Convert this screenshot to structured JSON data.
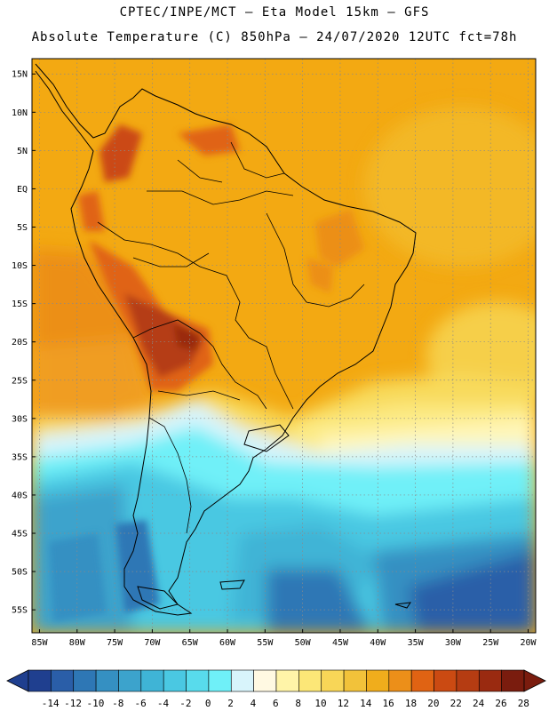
{
  "header": {
    "line1": "CPTEC/INPE/MCT –  Eta Model 15km – GFS",
    "line2": "Absolute Temperature (C) 850hPa – 24/07/2020 12UTC fct=78h"
  },
  "map": {
    "lon_range": [
      -86,
      -19
    ],
    "lat_range": [
      -58,
      17
    ],
    "lat_ticks": [
      "15N",
      "10N",
      "5N",
      "EQ",
      "5S",
      "10S",
      "15S",
      "20S",
      "25S",
      "30S",
      "35S",
      "40S",
      "45S",
      "50S",
      "55S"
    ],
    "lat_values": [
      15,
      10,
      5,
      0,
      -5,
      -10,
      -15,
      -20,
      -25,
      -30,
      -35,
      -40,
      -45,
      -50,
      -55
    ],
    "lon_ticks": [
      "85W",
      "80W",
      "75W",
      "70W",
      "65W",
      "60W",
      "55W",
      "50W",
      "45W",
      "40W",
      "35W",
      "30W",
      "25W",
      "20W"
    ],
    "lon_values": [
      -85,
      -80,
      -75,
      -70,
      -65,
      -60,
      -55,
      -50,
      -45,
      -40,
      -35,
      -30,
      -25,
      -20
    ],
    "variable": "Absolute Temperature",
    "units": "C",
    "level": "850hPa",
    "ocean_color": "#f5a60f",
    "land_outline_color": "#000000",
    "grid": true
  },
  "colorbar": {
    "labels": [
      "-14",
      "-12",
      "-10",
      "-8",
      "-6",
      "-4",
      "-2",
      "0",
      "2",
      "4",
      "6",
      "8",
      "10",
      "12",
      "14",
      "16",
      "18",
      "20",
      "22",
      "24",
      "26",
      "28"
    ],
    "colors": [
      "#1f3f8f",
      "#2a5ea8",
      "#2e77b5",
      "#3590c2",
      "#3ca3cc",
      "#3fb4d6",
      "#4ac8e2",
      "#58dbec",
      "#6ff0f8",
      "#d8f4fb",
      "#fff9e2",
      "#fff4a8",
      "#fce777",
      "#f8d657",
      "#f2c23a",
      "#f0ad1c",
      "#ec8f19",
      "#e06313",
      "#cb4a12",
      "#b53c12",
      "#9a2a10",
      "#7a1c0e"
    ]
  }
}
